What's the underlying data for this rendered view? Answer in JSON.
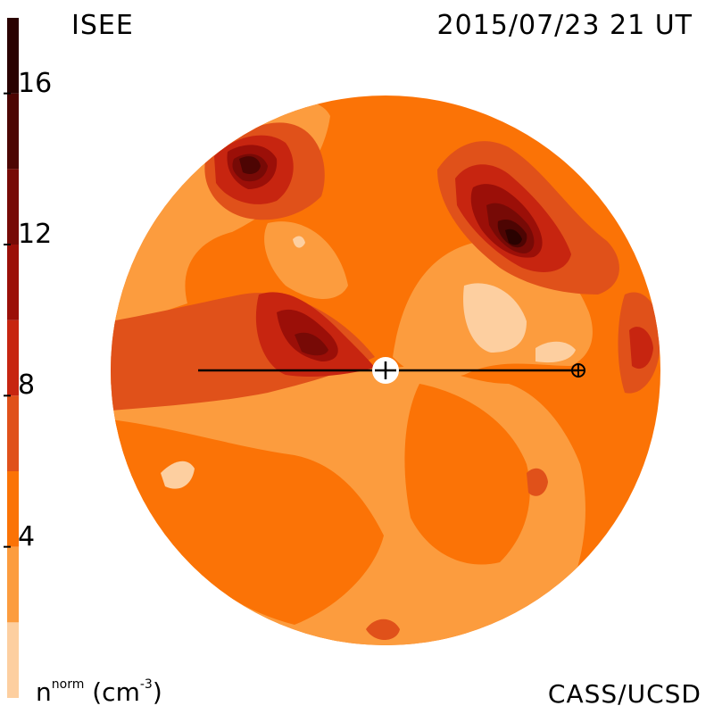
{
  "header": {
    "institute": "ISEE",
    "timestamp": "2015/07/23 21 UT"
  },
  "footer": {
    "credit": "CASS/UCSD",
    "unit_main": "n",
    "unit_super": "norm",
    "unit_open": "(cm",
    "unit_exp": "-3",
    "unit_close": ")"
  },
  "colorbar": {
    "levels": [
      {
        "min": 0,
        "max": 2,
        "color": "#fdcfa0"
      },
      {
        "min": 2,
        "max": 4,
        "color": "#fc9c3e"
      },
      {
        "min": 4,
        "max": 6,
        "color": "#fb7306"
      },
      {
        "min": 6,
        "max": 8,
        "color": "#e0511a"
      },
      {
        "min": 8,
        "max": 10,
        "color": "#c72510"
      },
      {
        "min": 10,
        "max": 12,
        "color": "#9b0f08"
      },
      {
        "min": 12,
        "max": 14,
        "color": "#770a06"
      },
      {
        "min": 14,
        "max": 16,
        "color": "#4d0503"
      },
      {
        "min": 16,
        "max": 18,
        "color": "#2a0201"
      }
    ],
    "ticks": [
      {
        "value": 4,
        "label": "4"
      },
      {
        "value": 8,
        "label": "8"
      },
      {
        "value": 12,
        "label": "12"
      },
      {
        "value": 16,
        "label": "16"
      }
    ]
  },
  "map": {
    "background_color": "#fb7306",
    "sun_color": "#ffffff",
    "orbit_line_color": "#000000"
  }
}
